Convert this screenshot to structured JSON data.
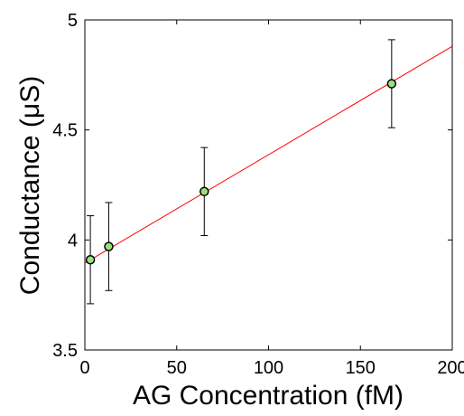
{
  "chart_data": {
    "type": "scatter",
    "xlabel": "AG Concentration (fM)",
    "ylabel": "Conductance (μS)",
    "xlim": [
      0,
      200
    ],
    "ylim": [
      3.5,
      5
    ],
    "xticks": [
      0,
      50,
      100,
      150,
      200
    ],
    "yticks": [
      3.5,
      4,
      4.5,
      5
    ],
    "xtick_labels": [
      "0",
      "50",
      "100",
      "150",
      "200"
    ],
    "ytick_labels": [
      "3.5",
      "4",
      "4.5",
      "5"
    ],
    "grid": false,
    "legend": "none",
    "series": [
      {
        "type": "scatter",
        "x": [
          3,
          13,
          65,
          167
        ],
        "y": [
          3.91,
          3.97,
          4.22,
          4.71
        ],
        "err": [
          0.2,
          0.2,
          0.2,
          0.2
        ],
        "marker_color": "#9be07a",
        "edge_color": "#000000",
        "errorbar_color": "#000000"
      },
      {
        "type": "line",
        "x": [
          0,
          200
        ],
        "y": [
          3.895,
          4.88
        ],
        "color": "#ff0000"
      }
    ]
  }
}
